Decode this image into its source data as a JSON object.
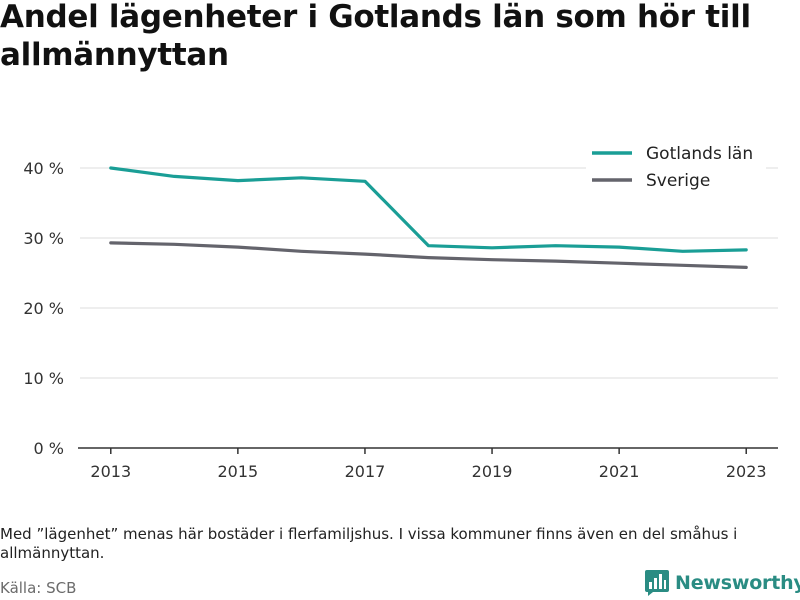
{
  "title": "Andel lägenheter i Gotlands län som hör till allmännyttan",
  "note": "Med ”lägenhet” menas här bostäder i flerfamiljshus. I vissa kommuner finns även en del småhus i allmännyttan.",
  "source": "Källa: SCB",
  "brand": {
    "name": "Newsworthy",
    "icon": "newsworthy-logo-icon",
    "color": "#2a8c83"
  },
  "chart_data": {
    "type": "line",
    "x": [
      2013,
      2014,
      2015,
      2016,
      2017,
      2018,
      2019,
      2020,
      2021,
      2022,
      2023
    ],
    "x_ticks": [
      2013,
      2015,
      2017,
      2019,
      2021,
      2023
    ],
    "x_tick_labels": [
      "2013",
      "2015",
      "2017",
      "2019",
      "2021",
      "2023"
    ],
    "y_ticks": [
      0,
      10,
      20,
      30,
      40
    ],
    "y_tick_labels": [
      "0 %",
      "10 %",
      "20 %",
      "30 %",
      "40 %"
    ],
    "ylim": [
      0,
      44
    ],
    "grid": true,
    "legend_position": "top-right",
    "series": [
      {
        "name": "Gotlands län",
        "color": "#1a9e96",
        "values": [
          40.0,
          38.8,
          38.2,
          38.6,
          38.1,
          28.9,
          28.6,
          28.9,
          28.7,
          28.1,
          28.3
        ]
      },
      {
        "name": "Sverige",
        "color": "#64646c",
        "values": [
          29.3,
          29.1,
          28.7,
          28.1,
          27.7,
          27.2,
          26.9,
          26.7,
          26.4,
          26.1,
          25.8
        ]
      }
    ]
  }
}
